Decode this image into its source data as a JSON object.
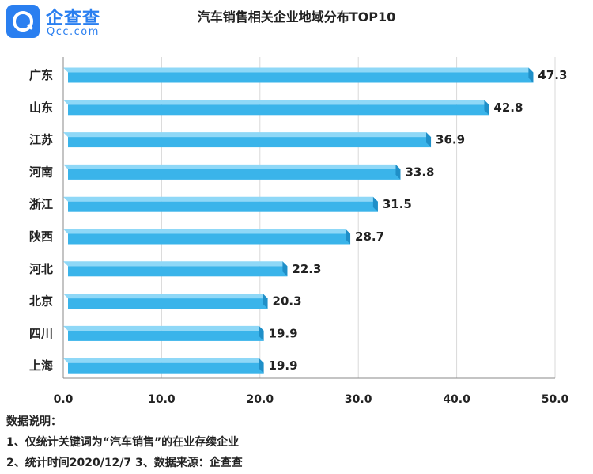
{
  "logo": {
    "name": "企查查",
    "domain": "Qcc.com",
    "brand_color": "#2a7ff0"
  },
  "chart_data": {
    "type": "bar",
    "orientation": "horizontal",
    "title": "汽车销售相关企业地域分布TOP10",
    "categories": [
      "广东",
      "山东",
      "江苏",
      "河南",
      "浙江",
      "陕西",
      "河北",
      "北京",
      "四川",
      "上海"
    ],
    "values": [
      47.3,
      42.8,
      36.9,
      33.8,
      31.5,
      28.7,
      22.3,
      20.3,
      19.9,
      19.9
    ],
    "value_labels": [
      "47.3",
      "42.8",
      "36.9",
      "33.8",
      "31.5",
      "28.7",
      "22.3",
      "20.3",
      "19.9",
      "19.9"
    ],
    "xlim": [
      0,
      50
    ],
    "xticks": [
      "0.0",
      "10.0",
      "20.0",
      "30.0",
      "40.0",
      "50.0"
    ],
    "grid": "vertical",
    "bar_color": "#3ab4ea",
    "bar_shade_color": "#1f8fc8",
    "bar_top_color": "#8fd8f7"
  },
  "notes": {
    "heading": "数据说明：",
    "line1": "1、仅统计关键词为“汽车销售”的在业存续企业",
    "line2": "2、统计时间2020/12/7   3、数据来源：企查查"
  }
}
